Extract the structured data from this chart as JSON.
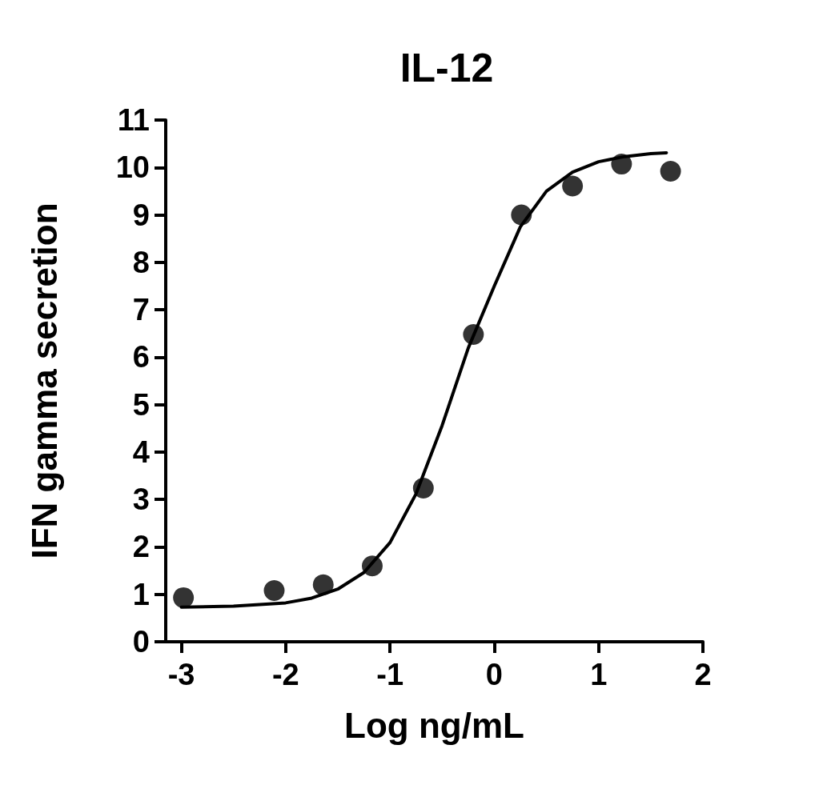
{
  "chart_data": {
    "type": "scatter",
    "title": "IL-12",
    "xlabel": "Log ng/mL",
    "ylabel": "IFN gamma secretion",
    "xlim": [
      -3.15,
      2
    ],
    "xticks": [
      -3,
      -2,
      -1,
      0,
      1,
      2
    ],
    "ylim": [
      0,
      11
    ],
    "yticks": [
      0,
      1,
      2,
      3,
      4,
      5,
      6,
      7,
      8,
      9,
      10,
      11
    ],
    "grid": false,
    "series": [
      {
        "color": "#000000",
        "marker": "circle",
        "x": [
          -2.98,
          -2.11,
          -1.64,
          -1.17,
          -0.68,
          -0.2,
          0.26,
          0.75,
          1.22,
          1.69
        ],
        "values": [
          0.93,
          1.08,
          1.2,
          1.6,
          3.24,
          6.48,
          9.0,
          9.61,
          10.07,
          9.92
        ]
      },
      {
        "type": "line",
        "color": "#000000",
        "marker": "none",
        "line_style": "solid",
        "x": [
          -3,
          -2.5,
          -2,
          -1.75,
          -1.5,
          -1.25,
          -1,
          -0.75,
          -0.5,
          -0.25,
          0,
          0.25,
          0.5,
          0.75,
          1,
          1.25,
          1.5,
          1.65
        ],
        "values": [
          0.73,
          0.75,
          0.82,
          0.92,
          1.11,
          1.46,
          2.09,
          3.12,
          4.56,
          6.19,
          7.5,
          8.75,
          9.5,
          9.9,
          10.12,
          10.23,
          10.29,
          10.31
        ]
      }
    ]
  }
}
